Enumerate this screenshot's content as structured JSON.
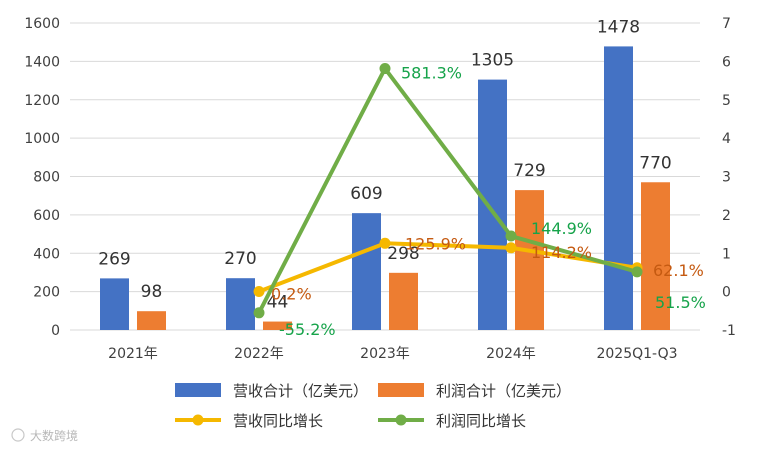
{
  "chart_data": {
    "type": "bar",
    "categories": [
      "2021年",
      "2022年",
      "2023年",
      "2024年",
      "2025Q1-Q3"
    ],
    "series": [
      {
        "name": "营收合计（亿美元）",
        "kind": "bar",
        "axis": "left",
        "color": "#4472c4",
        "values": [
          269,
          270,
          609,
          1305,
          1478
        ],
        "labels": [
          "269",
          "270",
          "609",
          "1305",
          "1478"
        ]
      },
      {
        "name": "利润合计（亿美元）",
        "kind": "bar",
        "axis": "left",
        "color": "#ed7d31",
        "values": [
          98,
          44,
          298,
          729,
          770
        ],
        "labels": [
          "98",
          "44",
          "298",
          "729",
          "770"
        ]
      },
      {
        "name": "营收同比增长",
        "kind": "line",
        "axis": "right",
        "color": "#f5b800",
        "values": [
          null,
          0.002,
          1.259,
          1.142,
          0.621
        ],
        "labels": [
          null,
          "0.2%",
          "125.9%",
          "114.2%",
          "62.1%"
        ]
      },
      {
        "name": "利润同比增长",
        "kind": "line",
        "axis": "right",
        "color": "#70ad47",
        "values": [
          null,
          -0.552,
          5.813,
          1.449,
          0.515
        ],
        "labels": [
          null,
          "-55.2%",
          "581.3%",
          "144.9%",
          "51.5%"
        ]
      }
    ],
    "y_left": {
      "min": 0,
      "max": 1600,
      "ticks": [
        "0",
        "200",
        "400",
        "600",
        "800",
        "1000",
        "1200",
        "1400",
        "1600"
      ]
    },
    "y_right": {
      "min": -1,
      "max": 7,
      "ticks": [
        "-1",
        "0",
        "1",
        "2",
        "3",
        "4",
        "5",
        "6",
        "7"
      ]
    },
    "grid": true,
    "legend_position": "bottom"
  },
  "watermark": "大数跨境",
  "colors": {
    "grid": "#d9d9d9",
    "axis": "#bfbfbf"
  }
}
